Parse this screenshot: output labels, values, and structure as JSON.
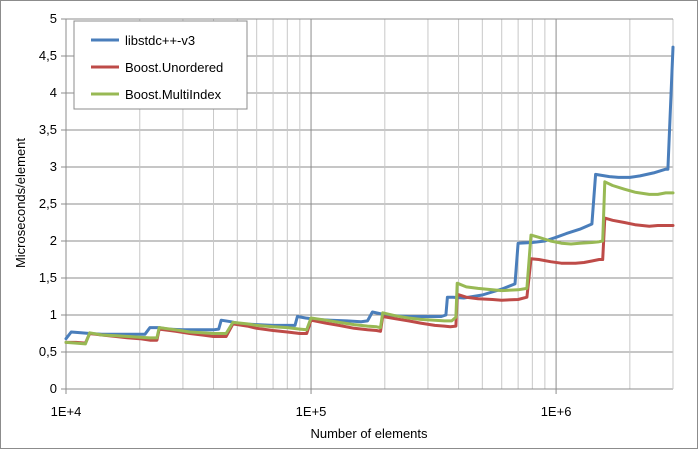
{
  "chart_data": {
    "type": "line",
    "title": "",
    "xlabel": "Number of elements",
    "ylabel": "Microseconds/element",
    "x_scale": "log",
    "xlim": [
      10000,
      3000000
    ],
    "ylim": [
      0,
      5
    ],
    "grid": true,
    "legend_position": "top-left",
    "x_tick_labels": [
      "1E+4",
      "1E+5",
      "1E+6"
    ],
    "y_tick_labels": [
      "0",
      "0,5",
      "1",
      "1,5",
      "2",
      "2,5",
      "3",
      "3,5",
      "4",
      "4,5",
      "5"
    ],
    "series": [
      {
        "name": "libstdc++-v3",
        "color": "#4a7ebb",
        "points": [
          [
            10000,
            0.68
          ],
          [
            10500,
            0.77
          ],
          [
            11500,
            0.76
          ],
          [
            12500,
            0.75
          ],
          [
            14000,
            0.74
          ],
          [
            16000,
            0.74
          ],
          [
            18000,
            0.74
          ],
          [
            21000,
            0.74
          ],
          [
            22000,
            0.83
          ],
          [
            24000,
            0.83
          ],
          [
            26000,
            0.81
          ],
          [
            30000,
            0.8
          ],
          [
            35000,
            0.8
          ],
          [
            40000,
            0.8
          ],
          [
            42000,
            0.81
          ],
          [
            43000,
            0.93
          ],
          [
            47000,
            0.91
          ],
          [
            50000,
            0.89
          ],
          [
            52000,
            0.88
          ],
          [
            60000,
            0.87
          ],
          [
            70000,
            0.86
          ],
          [
            80000,
            0.86
          ],
          [
            86000,
            0.86
          ],
          [
            88000,
            0.98
          ],
          [
            95000,
            0.96
          ],
          [
            105000,
            0.94
          ],
          [
            120000,
            0.93
          ],
          [
            140000,
            0.92
          ],
          [
            160000,
            0.91
          ],
          [
            170000,
            0.92
          ],
          [
            178000,
            1.04
          ],
          [
            190000,
            1.02
          ],
          [
            200000,
            1.0
          ],
          [
            220000,
            0.99
          ],
          [
            250000,
            0.98
          ],
          [
            300000,
            0.98
          ],
          [
            340000,
            0.98
          ],
          [
            355000,
            1.0
          ],
          [
            360000,
            1.24
          ],
          [
            380000,
            1.24
          ],
          [
            420000,
            1.23
          ],
          [
            500000,
            1.27
          ],
          [
            600000,
            1.35
          ],
          [
            680000,
            1.42
          ],
          [
            700000,
            1.97
          ],
          [
            800000,
            1.98
          ],
          [
            900000,
            2.0
          ],
          [
            1000000,
            2.05
          ],
          [
            1100000,
            2.1
          ],
          [
            1250000,
            2.16
          ],
          [
            1400000,
            2.23
          ],
          [
            1450000,
            2.9
          ],
          [
            1650000,
            2.87
          ],
          [
            1800000,
            2.86
          ],
          [
            2000000,
            2.86
          ],
          [
            2200000,
            2.88
          ],
          [
            2500000,
            2.92
          ],
          [
            2800000,
            2.97
          ],
          [
            2860000,
            2.97
          ],
          [
            3000000,
            4.62
          ]
        ]
      },
      {
        "name": "Boost.Unordered",
        "color": "#be4b48",
        "points": [
          [
            10000,
            0.63
          ],
          [
            11000,
            0.63
          ],
          [
            12000,
            0.62
          ],
          [
            12500,
            0.75
          ],
          [
            14000,
            0.73
          ],
          [
            16000,
            0.71
          ],
          [
            18000,
            0.69
          ],
          [
            20000,
            0.68
          ],
          [
            22000,
            0.66
          ],
          [
            23500,
            0.66
          ],
          [
            24000,
            0.81
          ],
          [
            28000,
            0.78
          ],
          [
            32000,
            0.75
          ],
          [
            36000,
            0.73
          ],
          [
            40000,
            0.71
          ],
          [
            45000,
            0.71
          ],
          [
            48000,
            0.88
          ],
          [
            55000,
            0.85
          ],
          [
            60000,
            0.82
          ],
          [
            70000,
            0.79
          ],
          [
            80000,
            0.77
          ],
          [
            90000,
            0.75
          ],
          [
            96000,
            0.75
          ],
          [
            100000,
            0.93
          ],
          [
            115000,
            0.89
          ],
          [
            130000,
            0.86
          ],
          [
            150000,
            0.82
          ],
          [
            170000,
            0.8
          ],
          [
            185000,
            0.79
          ],
          [
            192000,
            0.78
          ],
          [
            196000,
            0.98
          ],
          [
            220000,
            0.95
          ],
          [
            250000,
            0.92
          ],
          [
            280000,
            0.89
          ],
          [
            320000,
            0.86
          ],
          [
            350000,
            0.85
          ],
          [
            370000,
            0.84
          ],
          [
            390000,
            0.85
          ],
          [
            395000,
            1.28
          ],
          [
            430000,
            1.24
          ],
          [
            480000,
            1.22
          ],
          [
            550000,
            1.21
          ],
          [
            600000,
            1.2
          ],
          [
            700000,
            1.21
          ],
          [
            760000,
            1.24
          ],
          [
            790000,
            1.76
          ],
          [
            850000,
            1.75
          ],
          [
            950000,
            1.72
          ],
          [
            1050000,
            1.7
          ],
          [
            1200000,
            1.7
          ],
          [
            1300000,
            1.71
          ],
          [
            1400000,
            1.73
          ],
          [
            1500000,
            1.75
          ],
          [
            1550000,
            1.75
          ],
          [
            1580000,
            2.31
          ],
          [
            1700000,
            2.28
          ],
          [
            1900000,
            2.25
          ],
          [
            2100000,
            2.22
          ],
          [
            2400000,
            2.2
          ],
          [
            2600000,
            2.21
          ],
          [
            3000000,
            2.21
          ]
        ]
      },
      {
        "name": "Boost.MultiIndex",
        "color": "#98b954",
        "points": [
          [
            10000,
            0.63
          ],
          [
            11000,
            0.62
          ],
          [
            12000,
            0.61
          ],
          [
            12500,
            0.76
          ],
          [
            14000,
            0.73
          ],
          [
            16000,
            0.72
          ],
          [
            18000,
            0.71
          ],
          [
            20000,
            0.7
          ],
          [
            22000,
            0.69
          ],
          [
            23500,
            0.69
          ],
          [
            24000,
            0.83
          ],
          [
            28000,
            0.8
          ],
          [
            32000,
            0.77
          ],
          [
            36000,
            0.76
          ],
          [
            40000,
            0.75
          ],
          [
            45000,
            0.75
          ],
          [
            48000,
            0.9
          ],
          [
            55000,
            0.88
          ],
          [
            60000,
            0.86
          ],
          [
            70000,
            0.84
          ],
          [
            80000,
            0.83
          ],
          [
            90000,
            0.81
          ],
          [
            96000,
            0.8
          ],
          [
            100000,
            0.96
          ],
          [
            115000,
            0.93
          ],
          [
            130000,
            0.9
          ],
          [
            150000,
            0.87
          ],
          [
            170000,
            0.85
          ],
          [
            185000,
            0.84
          ],
          [
            192000,
            0.83
          ],
          [
            196000,
            1.03
          ],
          [
            220000,
            0.99
          ],
          [
            250000,
            0.96
          ],
          [
            280000,
            0.94
          ],
          [
            320000,
            0.93
          ],
          [
            350000,
            0.92
          ],
          [
            375000,
            0.92
          ],
          [
            390000,
            0.97
          ],
          [
            395000,
            1.43
          ],
          [
            430000,
            1.38
          ],
          [
            480000,
            1.36
          ],
          [
            550000,
            1.34
          ],
          [
            600000,
            1.33
          ],
          [
            700000,
            1.34
          ],
          [
            760000,
            1.36
          ],
          [
            790000,
            2.08
          ],
          [
            850000,
            2.05
          ],
          [
            950000,
            2.0
          ],
          [
            1050000,
            1.97
          ],
          [
            1150000,
            1.96
          ],
          [
            1250000,
            1.97
          ],
          [
            1400000,
            1.98
          ],
          [
            1500000,
            1.99
          ],
          [
            1550000,
            2.0
          ],
          [
            1580000,
            2.8
          ],
          [
            1700000,
            2.75
          ],
          [
            1900000,
            2.7
          ],
          [
            2100000,
            2.66
          ],
          [
            2400000,
            2.63
          ],
          [
            2600000,
            2.63
          ],
          [
            2800000,
            2.65
          ],
          [
            3000000,
            2.65
          ]
        ]
      }
    ]
  }
}
